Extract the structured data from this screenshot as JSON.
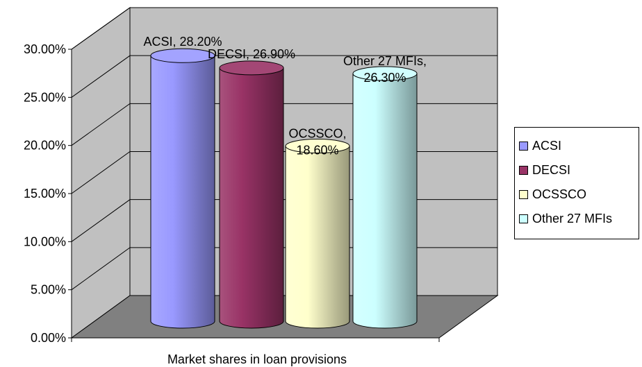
{
  "chart_data": {
    "type": "bar",
    "style": "3d-cylinder",
    "title": "",
    "xlabel": "Market shares in loan provisions",
    "ylabel": "",
    "ylim": [
      0,
      0.3
    ],
    "y_ticks": [
      "0.00%",
      "5.00%",
      "10.00%",
      "15.00%",
      "20.00%",
      "25.00%",
      "30.00%"
    ],
    "grid": true,
    "legend_position": "right",
    "series": [
      {
        "name": "ACSI",
        "value": 0.282,
        "label_lines": [
          "ACSI, 28.20%"
        ],
        "color": "#9999ff"
      },
      {
        "name": "DECSI",
        "value": 0.269,
        "label_lines": [
          "DECSI, 26.90%"
        ],
        "color": "#993366"
      },
      {
        "name": "OCSSCO",
        "value": 0.186,
        "label_lines": [
          "OCSSCO,",
          "18.60%"
        ],
        "color": "#ffffcc"
      },
      {
        "name": "Other 27 MFIs",
        "value": 0.263,
        "label_lines": [
          "Other 27 MFIs,",
          "26.30%"
        ],
        "color": "#ccffff"
      }
    ]
  },
  "colors": {
    "wall": "#c0c0c0",
    "floor": "#808080",
    "gridline": "#000000"
  }
}
